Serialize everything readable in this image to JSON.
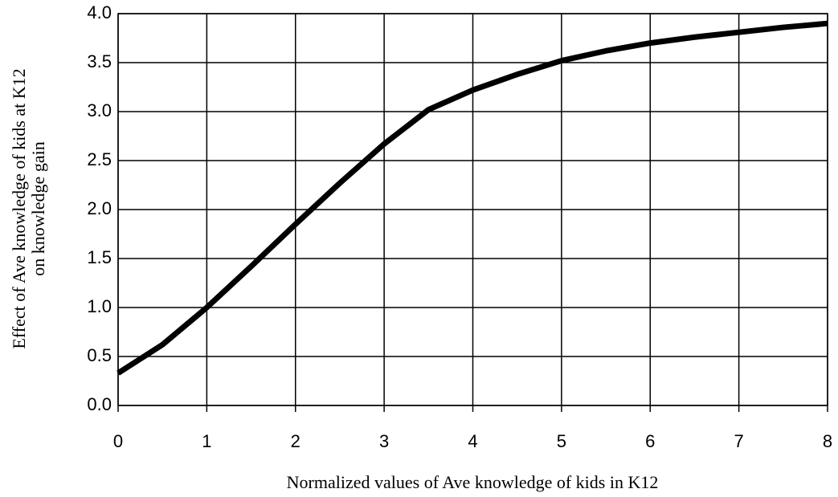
{
  "chart_data": {
    "type": "line",
    "xlabel": "Normalized values of Ave knowledge of kids in K12",
    "ylabel": [
      "Effect of Ave knowledge of kids at K12",
      "on knowledge gain"
    ],
    "x": [
      0,
      0.5,
      1,
      1.5,
      2,
      2.5,
      3,
      3.5,
      4,
      4.5,
      5,
      5.5,
      6,
      6.5,
      7,
      7.5,
      8
    ],
    "series": [
      {
        "color": "#000000",
        "values": [
          0.33,
          0.62,
          1.0,
          1.42,
          1.85,
          2.27,
          2.67,
          3.02,
          3.22,
          3.38,
          3.52,
          3.62,
          3.7,
          3.76,
          3.81,
          3.86,
          3.9
        ]
      }
    ],
    "xlim": [
      0,
      8
    ],
    "xticks": [
      0,
      1,
      2,
      3,
      4,
      5,
      6,
      7,
      8
    ],
    "ylim": [
      0,
      4
    ],
    "yticks": [
      {
        "value": 0,
        "label": "0.0"
      },
      0.5,
      {
        "value": 1,
        "label": "1.0"
      },
      1.5,
      {
        "value": 2,
        "label": "2.0"
      },
      2.5,
      {
        "value": 3,
        "label": "3.0"
      },
      3.5,
      {
        "value": 4,
        "label": "4.0"
      }
    ],
    "grid": true
  }
}
